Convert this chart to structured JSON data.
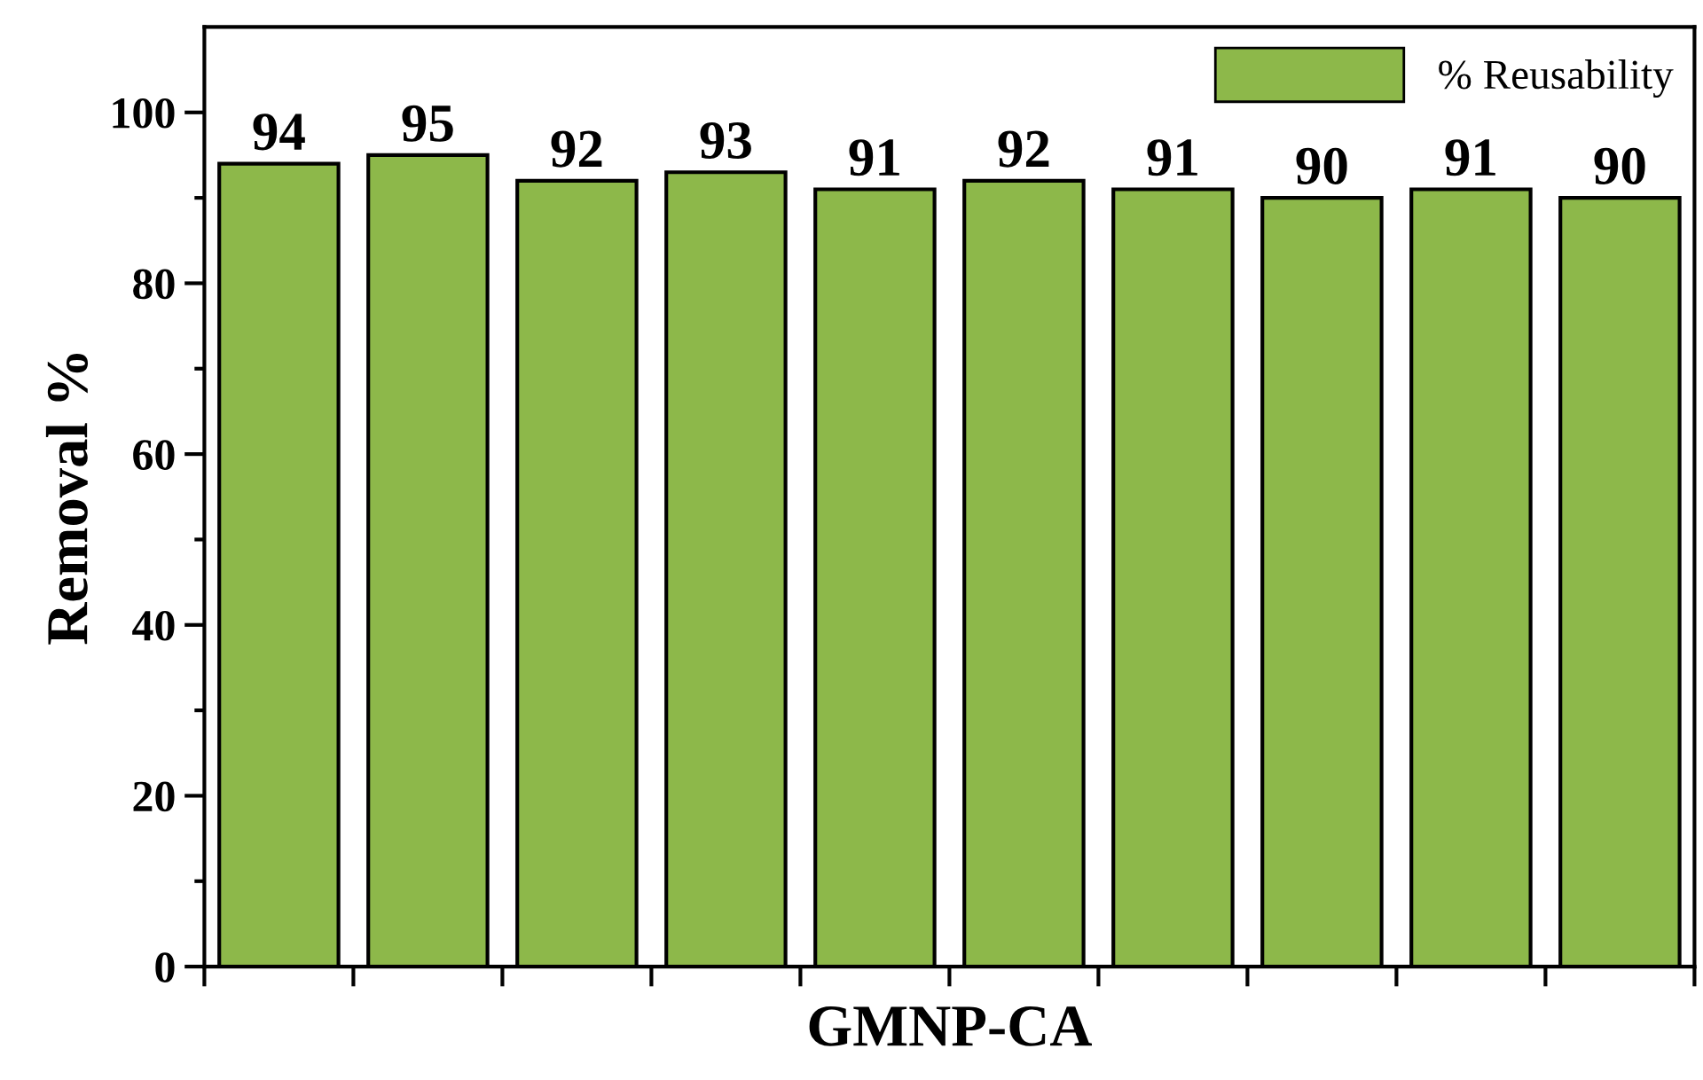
{
  "chart_data": {
    "type": "bar",
    "xlabel": "GMNP-CA",
    "ylabel": "Removal %",
    "categories": [
      null,
      null,
      null,
      null,
      null,
      null,
      null,
      null,
      null,
      null
    ],
    "series": [
      {
        "name": "% Reusability",
        "color": "#8db84a",
        "values": [
          94,
          95,
          92,
          93,
          91,
          92,
          91,
          90,
          91,
          90
        ]
      }
    ],
    "data_labels": true,
    "ylim": [
      0,
      110
    ],
    "yticks": [
      0,
      20,
      40,
      60,
      80,
      100
    ],
    "grid": false,
    "legend": "top right"
  }
}
